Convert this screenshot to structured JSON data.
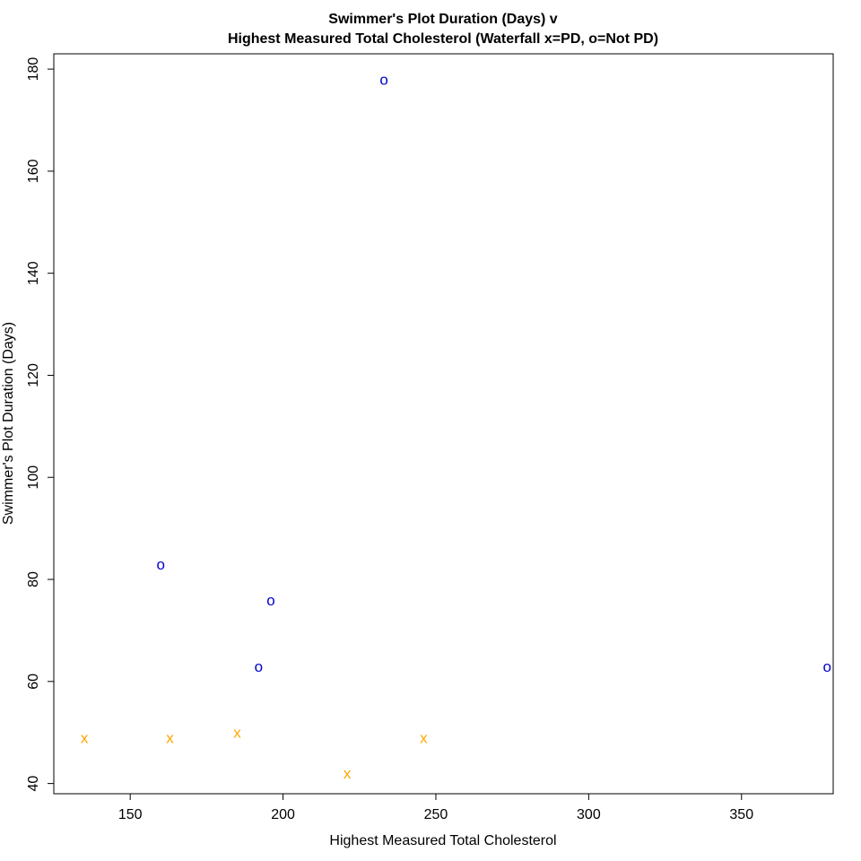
{
  "chart_data": {
    "type": "scatter",
    "title": "Swimmer's Plot Duration (Days) v",
    "subtitle": "Highest Measured Total Cholesterol (Waterfall x=PD, o=Not PD)",
    "xlabel": "Highest Measured Total Cholesterol",
    "ylabel": "Swimmer's Plot Duration (Days)",
    "xlim": [
      125,
      380
    ],
    "ylim": [
      38,
      183
    ],
    "x_ticks": [
      150,
      200,
      250,
      300,
      350
    ],
    "y_ticks": [
      40,
      60,
      80,
      100,
      120,
      140,
      160,
      180
    ],
    "grid": false,
    "series": [
      {
        "name": "x=PD",
        "marker": "x",
        "color": "#FFA500",
        "points": [
          {
            "x": 135,
            "y": 49
          },
          {
            "x": 163,
            "y": 49
          },
          {
            "x": 185,
            "y": 50
          },
          {
            "x": 221,
            "y": 42
          },
          {
            "x": 246,
            "y": 49
          }
        ]
      },
      {
        "name": "o=Not PD",
        "marker": "o",
        "color": "#0000CD",
        "points": [
          {
            "x": 160,
            "y": 83
          },
          {
            "x": 192,
            "y": 63
          },
          {
            "x": 196,
            "y": 76
          },
          {
            "x": 233,
            "y": 178
          },
          {
            "x": 378,
            "y": 63
          }
        ]
      }
    ]
  }
}
